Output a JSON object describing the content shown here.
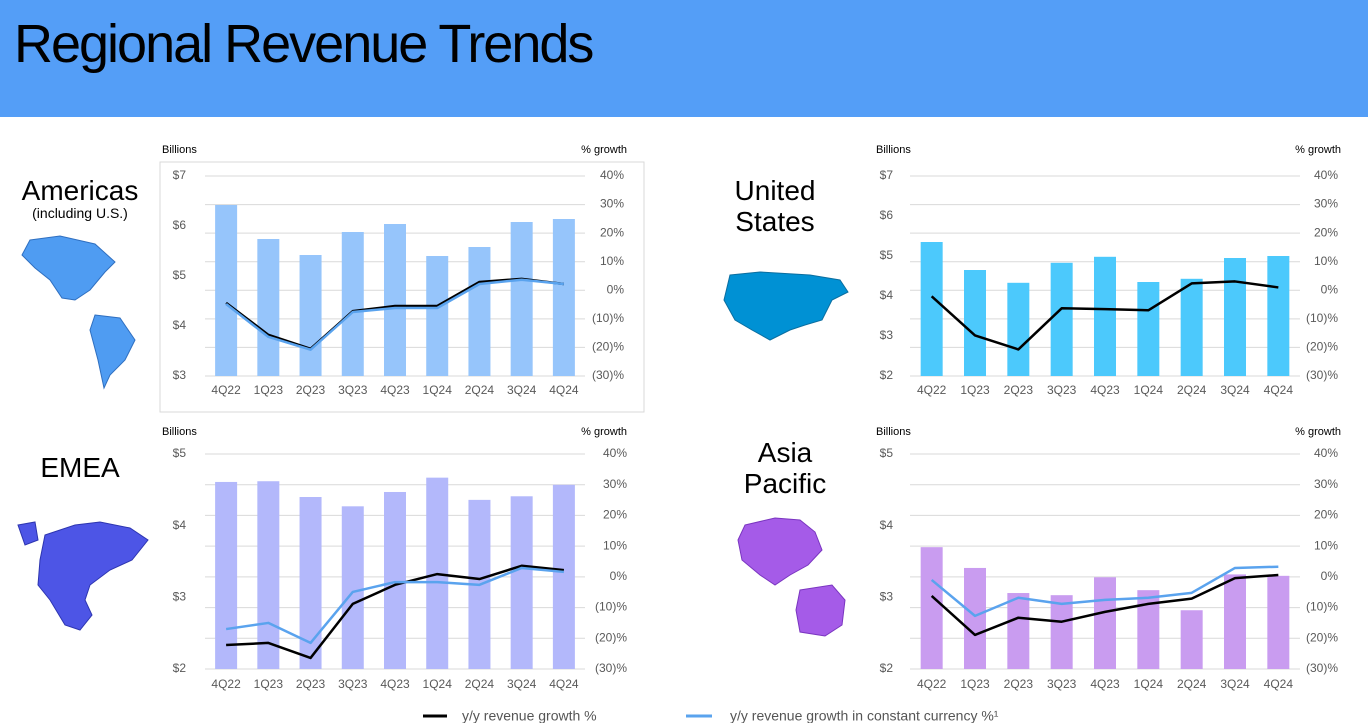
{
  "header": {
    "title": "Regional Revenue Trends"
  },
  "chart_data": [
    {
      "type": "combo",
      "region_lines": [
        "Americas"
      ],
      "region_note": "(including U.S.)",
      "ylabel": "Billions",
      "y2label": "% growth",
      "categories": [
        "4Q22",
        "1Q23",
        "2Q23",
        "3Q23",
        "4Q23",
        "1Q24",
        "2Q24",
        "3Q24",
        "4Q24"
      ],
      "ylim": [
        3,
        7
      ],
      "yticks": [
        {
          "value": 3,
          "label": "$3"
        },
        {
          "value": 4,
          "label": "$4"
        },
        {
          "value": 5,
          "label": "$5"
        },
        {
          "value": 6,
          "label": "$6"
        },
        {
          "value": 7,
          "label": "$7"
        }
      ],
      "y2lim": [
        -30,
        40
      ],
      "y2ticks": [
        {
          "value": 40,
          "label": "40%"
        },
        {
          "value": 30,
          "label": "30%"
        },
        {
          "value": 20,
          "label": "20%"
        },
        {
          "value": 10,
          "label": "10%"
        },
        {
          "value": 0,
          "label": "0%"
        },
        {
          "value": -10,
          "label": "(10)%"
        },
        {
          "value": -20,
          "label": "(20)%"
        },
        {
          "value": -30,
          "label": "(30)%"
        }
      ],
      "grid": true,
      "box": true,
      "series": [
        {
          "type": "bar",
          "color": "#96c5fb",
          "values": [
            6.42,
            5.74,
            5.42,
            5.88,
            6.04,
            5.4,
            5.58,
            6.08,
            6.14
          ]
        },
        {
          "type": "line",
          "axis": "y2",
          "name": "y/y revenue growth %",
          "color": "#000000",
          "values": [
            -4.4,
            -15.6,
            -20.5,
            -7.3,
            -5.5,
            -5.5,
            2.9,
            4,
            2.2
          ]
        },
        {
          "type": "line",
          "axis": "y2",
          "name": "y/y revenue growth in constant currency %¹",
          "color": "#5aa3ee",
          "values": [
            -4.8,
            -16.3,
            -20.8,
            -7.6,
            -6.2,
            -6.2,
            2.2,
            3.7,
            2.2
          ]
        }
      ]
    },
    {
      "type": "combo",
      "region_lines": [
        "United",
        "States"
      ],
      "ylabel": "Billions",
      "y2label": "% growth",
      "categories": [
        "4Q22",
        "1Q23",
        "2Q23",
        "3Q23",
        "4Q23",
        "1Q24",
        "2Q24",
        "3Q24",
        "4Q24"
      ],
      "ylim": [
        2,
        7
      ],
      "yticks": [
        {
          "value": 2,
          "label": "$2"
        },
        {
          "value": 3,
          "label": "$3"
        },
        {
          "value": 4,
          "label": "$4"
        },
        {
          "value": 5,
          "label": "$5"
        },
        {
          "value": 6,
          "label": "$6"
        },
        {
          "value": 7,
          "label": "$7"
        }
      ],
      "y2lim": [
        -30,
        40
      ],
      "y2ticks": [
        {
          "value": 40,
          "label": "40%"
        },
        {
          "value": 30,
          "label": "30%"
        },
        {
          "value": 20,
          "label": "20%"
        },
        {
          "value": 10,
          "label": "10%"
        },
        {
          "value": 0,
          "label": "0%"
        },
        {
          "value": -10,
          "label": "(10)%"
        },
        {
          "value": -20,
          "label": "(20)%"
        },
        {
          "value": -30,
          "label": "(30)%"
        }
      ],
      "grid": true,
      "series": [
        {
          "type": "bar",
          "color": "#4cc9fc",
          "values": [
            5.35,
            4.65,
            4.33,
            4.83,
            4.98,
            4.35,
            4.43,
            4.95,
            5.0
          ]
        },
        {
          "type": "line",
          "axis": "y2",
          "color": "#000000",
          "values": [
            -2.1,
            -15.8,
            -20.7,
            -6.3,
            -6.6,
            -7,
            2.4,
            3.1,
            1.0
          ]
        }
      ]
    },
    {
      "type": "combo",
      "region_lines": [
        "EMEA"
      ],
      "ylabel": "Billions",
      "y2label": "% growth",
      "categories": [
        "4Q22",
        "1Q23",
        "2Q23",
        "3Q23",
        "4Q23",
        "1Q24",
        "2Q24",
        "3Q24",
        "4Q24"
      ],
      "ylim": [
        2,
        5
      ],
      "yticks": [
        {
          "value": 2,
          "label": "$2"
        },
        {
          "value": 3,
          "label": "$3"
        },
        {
          "value": 4,
          "label": "$4"
        },
        {
          "value": 5,
          "label": "$5"
        }
      ],
      "y2lim": [
        -30,
        40
      ],
      "y2ticks": [
        {
          "value": 40,
          "label": "40%"
        },
        {
          "value": 30,
          "label": "30%"
        },
        {
          "value": 20,
          "label": "20%"
        },
        {
          "value": 10,
          "label": "10%"
        },
        {
          "value": 0,
          "label": "0%"
        },
        {
          "value": -10,
          "label": "(10)%"
        },
        {
          "value": -20,
          "label": "(20)%"
        },
        {
          "value": -30,
          "label": "(30)%"
        }
      ],
      "grid": true,
      "series": [
        {
          "type": "bar",
          "color": "#b3b8fb",
          "values": [
            4.61,
            4.62,
            4.4,
            4.27,
            4.47,
            4.67,
            4.36,
            4.41,
            4.57
          ]
        },
        {
          "type": "line",
          "axis": "y2",
          "color": "#000000",
          "values": [
            -22.2,
            -21.5,
            -26.4,
            -8.8,
            -2.6,
            0.9,
            -0.7,
            3.6,
            2.2
          ]
        },
        {
          "type": "line",
          "axis": "y2",
          "color": "#5aa3ee",
          "values": [
            -17,
            -15,
            -21.5,
            -4.9,
            -1.7,
            -1.7,
            -2.6,
            2.9,
            1.6
          ]
        }
      ]
    },
    {
      "type": "combo",
      "region_lines": [
        "Asia",
        "Pacific"
      ],
      "ylabel": "Billions",
      "y2label": "% growth",
      "categories": [
        "4Q22",
        "1Q23",
        "2Q23",
        "3Q23",
        "4Q23",
        "1Q24",
        "2Q24",
        "3Q24",
        "4Q24"
      ],
      "ylim": [
        2,
        5
      ],
      "yticks": [
        {
          "value": 2,
          "label": "$2"
        },
        {
          "value": 3,
          "label": "$3"
        },
        {
          "value": 4,
          "label": "$4"
        },
        {
          "value": 5,
          "label": "$5"
        }
      ],
      "y2lim": [
        -30,
        40
      ],
      "y2ticks": [
        {
          "value": 40,
          "label": "40%"
        },
        {
          "value": 30,
          "label": "30%"
        },
        {
          "value": 20,
          "label": "20%"
        },
        {
          "value": 10,
          "label": "10%"
        },
        {
          "value": 0,
          "label": "0%"
        },
        {
          "value": -10,
          "label": "(10)%"
        },
        {
          "value": -20,
          "label": "(20)%"
        },
        {
          "value": -30,
          "label": "(30)%"
        }
      ],
      "grid": true,
      "series": [
        {
          "type": "bar",
          "color": "#c99cf0",
          "values": [
            3.7,
            3.41,
            3.06,
            3.03,
            3.28,
            3.1,
            2.82,
            3.32,
            3.3
          ]
        },
        {
          "type": "line",
          "axis": "y2",
          "color": "#000000",
          "values": [
            -6.2,
            -18.9,
            -13.3,
            -14.6,
            -11.4,
            -8.8,
            -7.1,
            -0.4,
            0.6
          ]
        },
        {
          "type": "line",
          "axis": "y2",
          "color": "#5aa3ee",
          "values": [
            -1,
            -12.7,
            -6.8,
            -8.8,
            -7.5,
            -6.8,
            -5.2,
            2.9,
            3.3
          ]
        }
      ]
    }
  ]
}
